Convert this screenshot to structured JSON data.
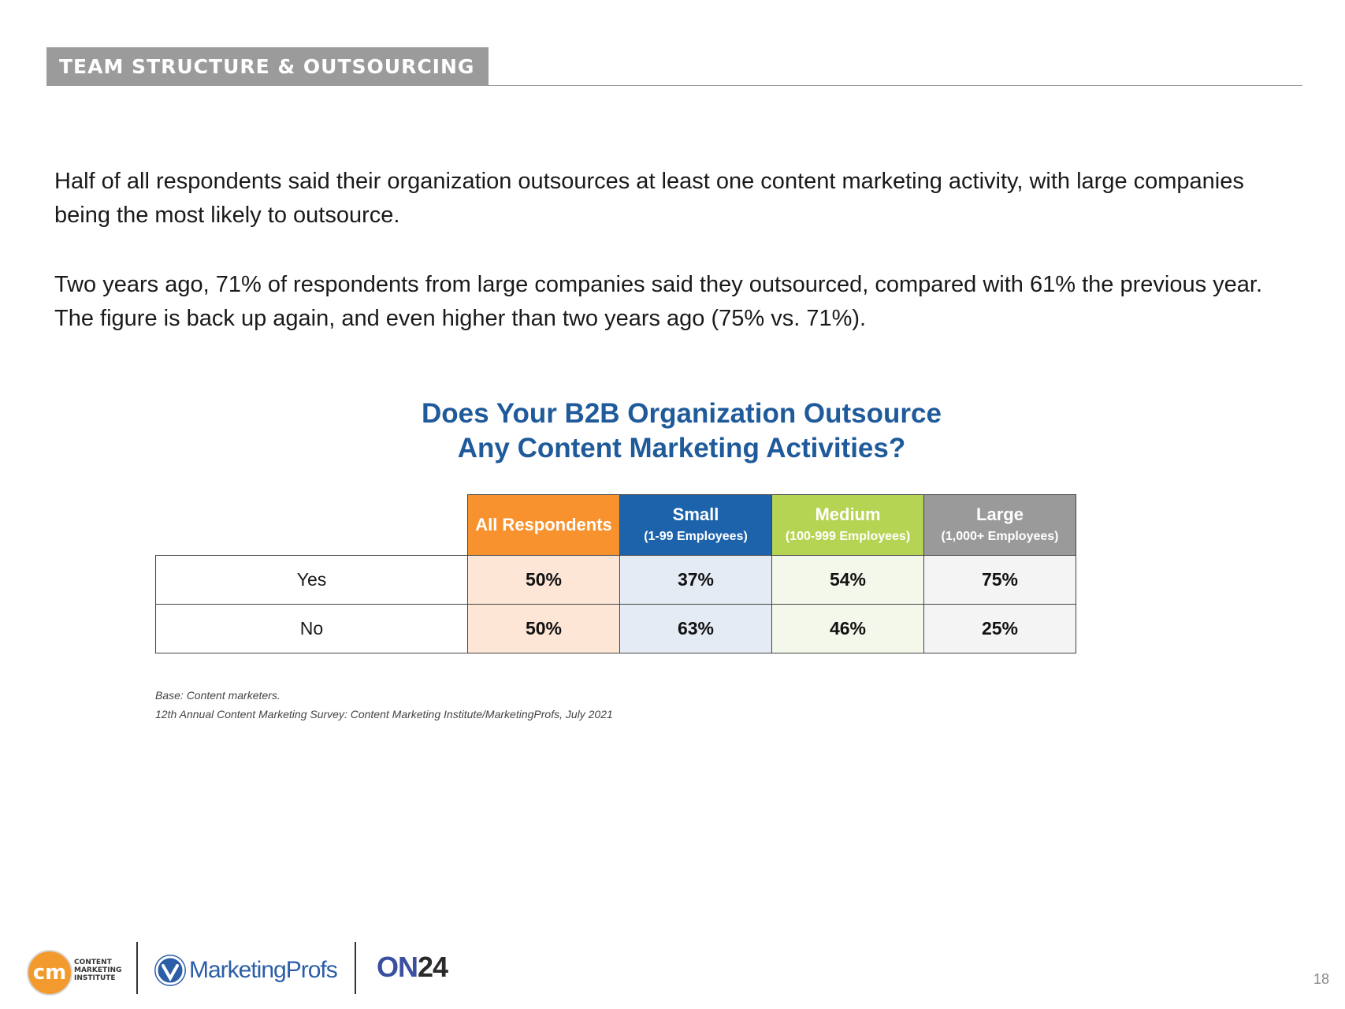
{
  "section": {
    "title": "TEAM STRUCTURE & OUTSOURCING"
  },
  "intro": {
    "p1": "Half of all respondents said their organization outsources at least one content marketing activity, with large companies being the most likely to outsource.",
    "p2": "Two years ago, 71% of respondents from large companies said they outsourced, compared with 61% the previous year. The figure is back up again, and even higher than two years ago (75% vs. 71%)."
  },
  "chart_data": {
    "type": "table",
    "title": [
      "Does Your B2B Organization Outsource",
      "Any Content Marketing Activities?"
    ],
    "columns": [
      {
        "name": "All Respondents",
        "sub": "",
        "color": "#f7922e"
      },
      {
        "name": "Small",
        "sub": "(1-99 Employees)",
        "color": "#1c63ab"
      },
      {
        "name": "Medium",
        "sub": "(100-999 Employees)",
        "color": "#b6d453"
      },
      {
        "name": "Large",
        "sub": "(1,000+ Employees)",
        "color": "#9a9a9a"
      }
    ],
    "rows": [
      {
        "label": "Yes",
        "values": [
          "50%",
          "37%",
          "54%",
          "75%"
        ]
      },
      {
        "label": "No",
        "values": [
          "50%",
          "63%",
          "46%",
          "25%"
        ]
      }
    ]
  },
  "source": {
    "base": "Base: Content marketers.",
    "citation": "12th Annual Content Marketing Survey: Content Marketing Institute/MarketingProfs, July 2021"
  },
  "footer": {
    "cmi_mark": "cm",
    "cmi_lines": [
      "CONTENT",
      "MARKETING",
      "INSTITUTE"
    ],
    "marketingprofs": "MarketingProfs",
    "on24_a": "ON",
    "on24_b": "24"
  },
  "page_number": "18"
}
